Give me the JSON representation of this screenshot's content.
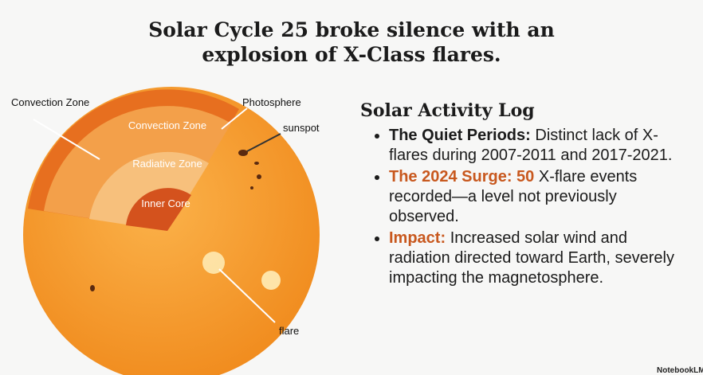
{
  "header": {
    "title": "Solar Cycle 25 broke silence with an explosion of X-Class flares."
  },
  "diagram": {
    "outer_label": "Convection Zone",
    "photosphere": "Photosphere",
    "sunspot": "sunspot",
    "flare": "flare",
    "layers": [
      "Convection Zone",
      "Radiative Zone",
      "Inner Core"
    ]
  },
  "log": {
    "heading": "Solar Activity Log",
    "items": [
      {
        "lead": "The Quiet Periods:",
        "text": "Distinct lack of X-flares during 2007-2011 and 2017-2021."
      },
      {
        "lead": "The 2024 Surge: 50",
        "text": "X-flare events recorded—a level not previously observed."
      },
      {
        "lead": "Impact:",
        "text": "Increased solar wind and radiation directed toward Earth, severely impacting the magnetosphere."
      }
    ]
  },
  "brand": "NotebookLM"
}
